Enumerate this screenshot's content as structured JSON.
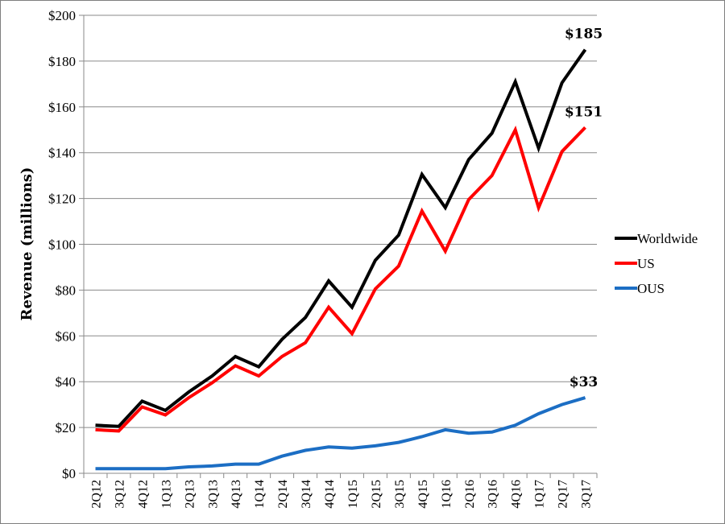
{
  "chart_data": {
    "type": "line",
    "ylabel": "Revenue (millions)",
    "ylim": [
      0,
      200
    ],
    "yticks": [
      "$0",
      "$20",
      "$40",
      "$60",
      "$80",
      "$100",
      "$120",
      "$140",
      "$160",
      "$180",
      "$200"
    ],
    "grid": true,
    "legend_position": "right",
    "categories": [
      "2Q12",
      "3Q12",
      "4Q12",
      "1Q13",
      "2Q13",
      "3Q13",
      "4Q13",
      "1Q14",
      "2Q14",
      "3Q14",
      "4Q14",
      "1Q15",
      "2Q15",
      "3Q15",
      "4Q15",
      "1Q16",
      "2Q16",
      "3Q16",
      "4Q16",
      "1Q17",
      "2Q17",
      "3Q17"
    ],
    "series": [
      {
        "name": "Worldwide",
        "color": "#000000",
        "values": [
          21,
          20.5,
          31.5,
          27.5,
          35.5,
          42.5,
          51,
          46.5,
          58.5,
          68,
          84,
          72.5,
          93,
          104,
          130.5,
          116,
          137,
          148.5,
          171,
          142,
          170.5,
          185
        ]
      },
      {
        "name": "US",
        "color": "#ff0000",
        "values": [
          19,
          18.5,
          29,
          25.5,
          33,
          39.5,
          47,
          42.5,
          51,
          57,
          72.5,
          61,
          80.5,
          90.5,
          114.5,
          97,
          119.5,
          130,
          150,
          116,
          140.5,
          151
        ]
      },
      {
        "name": "OUS",
        "color": "#1c6ec4",
        "values": [
          2,
          2,
          2,
          2,
          2.8,
          3.2,
          4,
          4,
          7.5,
          10,
          11.5,
          11,
          12,
          13.5,
          16,
          19,
          17.5,
          18,
          21,
          26,
          30,
          33
        ]
      }
    ],
    "annotations": [
      {
        "series": "Worldwide",
        "text": "$185"
      },
      {
        "series": "US",
        "text": "$151"
      },
      {
        "series": "OUS",
        "text": "$33"
      }
    ]
  }
}
